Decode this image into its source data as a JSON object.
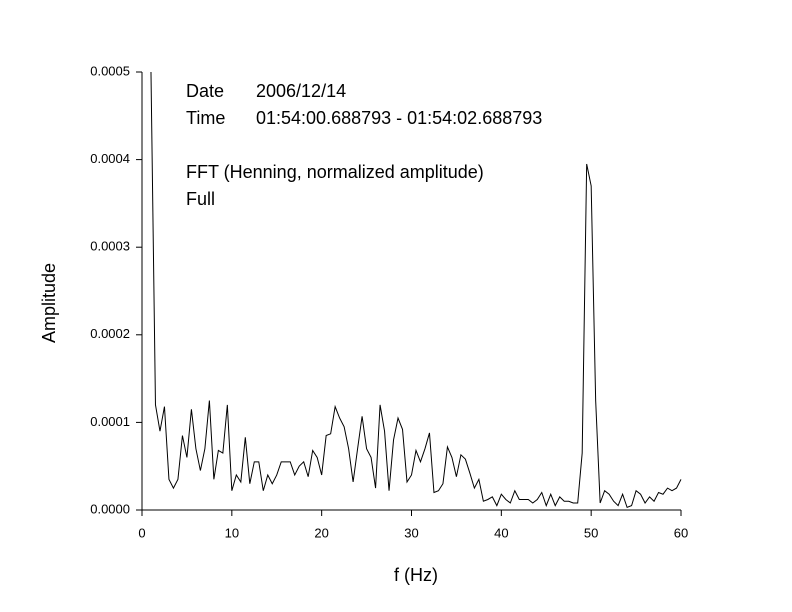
{
  "chart_data": {
    "type": "line",
    "xlabel": "f (Hz)",
    "ylabel": "Amplitude",
    "annotations": [
      "Date",
      "2006/12/14",
      "Time",
      "01:54:00.688793 - 01:54:02.688793",
      "FFT (Henning, normalized amplitude)",
      "Full"
    ],
    "x": [
      1,
      1.5,
      2,
      2.5,
      3,
      3.5,
      4,
      4.5,
      5,
      5.5,
      6,
      6.5,
      7,
      7.5,
      8,
      8.5,
      9,
      9.5,
      10,
      10.5,
      11,
      11.5,
      12,
      12.5,
      13,
      13.5,
      14,
      14.5,
      15,
      15.5,
      16,
      16.5,
      17,
      17.5,
      18,
      18.5,
      19,
      19.5,
      20,
      20.5,
      21,
      21.5,
      22,
      22.5,
      23,
      23.5,
      24,
      24.5,
      25,
      25.5,
      26,
      26.5,
      27,
      27.5,
      28,
      28.5,
      29,
      29.5,
      30,
      30.5,
      31,
      31.5,
      32,
      32.5,
      33,
      33.5,
      34,
      34.5,
      35,
      35.5,
      36,
      36.5,
      37,
      37.5,
      38,
      38.5,
      39,
      39.5,
      40,
      40.5,
      41,
      41.5,
      42,
      42.5,
      43,
      43.5,
      44,
      44.5,
      45,
      45.5,
      46,
      46.5,
      47,
      47.5,
      48,
      48.5,
      49,
      49.5,
      50,
      50.5,
      51,
      51.5,
      52,
      52.5,
      53,
      53.5,
      54,
      54.5,
      55,
      55.5,
      56,
      56.5,
      57,
      57.5,
      58,
      58.5,
      59,
      59.5,
      60
    ],
    "series": [
      {
        "color": "#000000",
        "values": [
          0.0005,
          0.00012,
          9e-05,
          0.000118,
          3.5e-05,
          2.5e-05,
          3.5e-05,
          8.5e-05,
          6e-05,
          0.000115,
          7e-05,
          4.5e-05,
          7e-05,
          0.000125,
          3.5e-05,
          6.8e-05,
          6.5e-05,
          0.00012,
          2.2e-05,
          4e-05,
          3.2e-05,
          8.3e-05,
          3e-05,
          5.5e-05,
          5.5e-05,
          2.2e-05,
          4e-05,
          3e-05,
          4e-05,
          5.5e-05,
          5.5e-05,
          5.5e-05,
          4e-05,
          5e-05,
          5.5e-05,
          3.8e-05,
          6.8e-05,
          6e-05,
          4e-05,
          8.5e-05,
          8.7e-05,
          0.000118,
          0.000105,
          9.5e-05,
          7e-05,
          3.2e-05,
          7e-05,
          0.000107,
          7e-05,
          6e-05,
          2.5e-05,
          0.00012,
          9e-05,
          2.2e-05,
          8e-05,
          0.000105,
          9.2e-05,
          3.2e-05,
          4e-05,
          6.8e-05,
          5.5e-05,
          7e-05,
          8.8e-05,
          2e-05,
          2.2e-05,
          3e-05,
          7.2e-05,
          6e-05,
          3.8e-05,
          6.3e-05,
          5.8e-05,
          4.2e-05,
          2.5e-05,
          3.5e-05,
          1e-05,
          1.2e-05,
          1.5e-05,
          5e-06,
          1.8e-05,
          1.2e-05,
          8e-06,
          2.2e-05,
          1.2e-05,
          1.2e-05,
          1.2e-05,
          8e-06,
          1.2e-05,
          2e-05,
          5e-06,
          1.8e-05,
          5e-06,
          1.5e-05,
          1e-05,
          1e-05,
          8e-06,
          8e-06,
          6.5e-05,
          0.000395,
          0.00037,
          0.000125,
          8e-06,
          2.2e-05,
          1.8e-05,
          1e-05,
          5e-06,
          1.8e-05,
          3e-06,
          5e-06,
          2.2e-05,
          1.8e-05,
          8e-06,
          1.5e-05,
          1e-05,
          2e-05,
          1.8e-05,
          2.5e-05,
          2.2e-05,
          2.5e-05,
          3.5e-05
        ]
      }
    ],
    "xlim": [
      0,
      60
    ],
    "xticks": [
      0,
      10,
      20,
      30,
      40,
      50,
      60
    ],
    "ylim": [
      0,
      0.0005
    ],
    "yticks": [
      {
        "value": 0,
        "label": "0.0000"
      },
      0.0001,
      0.0002,
      0.0003,
      0.0004,
      0.0005
    ],
    "grid": false
  }
}
